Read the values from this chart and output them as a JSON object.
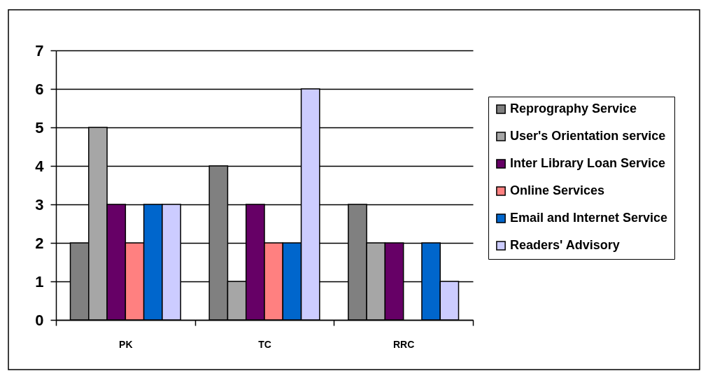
{
  "chart_data": {
    "type": "bar",
    "categories": [
      "PK",
      "TC",
      "RRC"
    ],
    "series": [
      {
        "name": "Reprography Service",
        "color": "#808080",
        "values": [
          2,
          4,
          3
        ]
      },
      {
        "name": "User's Orientation service",
        "color": "#a6a6a6",
        "values": [
          5,
          1,
          2
        ]
      },
      {
        "name": "Inter Library Loan Service",
        "color": "#660066",
        "values": [
          3,
          3,
          2
        ]
      },
      {
        "name": "Online Services",
        "color": "#ff8080",
        "values": [
          2,
          2,
          null
        ]
      },
      {
        "name": "Email and Internet Service",
        "color": "#0066cc",
        "values": [
          3,
          2,
          2
        ]
      },
      {
        "name": "Readers' Advisory",
        "color": "#ccccff",
        "values": [
          3,
          6,
          1
        ]
      }
    ],
    "ylim": [
      0,
      7
    ],
    "yticks": [
      0,
      1,
      2,
      3,
      4,
      5,
      6,
      7
    ],
    "grid": "y",
    "legend": "right"
  }
}
